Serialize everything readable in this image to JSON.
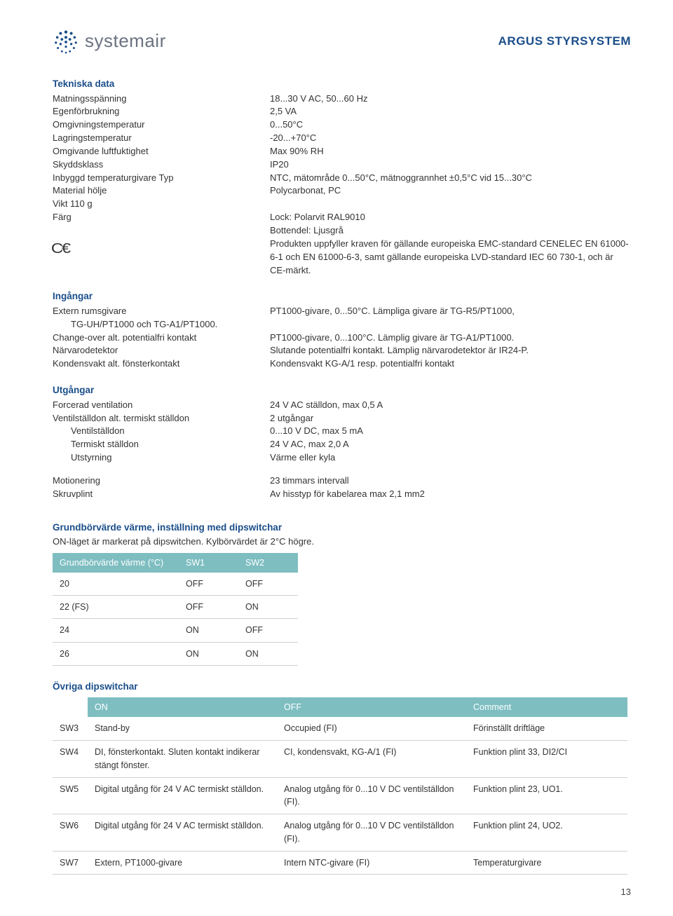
{
  "header": {
    "brand": "systemair",
    "title": "ARGUS STYRSYSTEM"
  },
  "tekniska": {
    "heading": "Tekniska data",
    "rows": [
      {
        "label": "Matningsspänning",
        "value": "18...30 V AC, 50...60 Hz"
      },
      {
        "label": "Egenförbrukning",
        "value": "2,5 VA"
      },
      {
        "label": "Omgivningstemperatur",
        "value": "0...50°C"
      },
      {
        "label": "Lagringstemperatur",
        "value": "-20...+70°C"
      },
      {
        "label": "Omgivande luftfuktighet",
        "value": "Max 90% RH"
      },
      {
        "label": "Skyddsklass",
        "value": "IP20"
      },
      {
        "label": "Inbyggd temperaturgivare Typ",
        "value": "NTC, mätområde 0...50°C, mätnoggrannhet ±0,5°C vid 15...30°C"
      },
      {
        "label": "Material hölje",
        "value": "Polycarbonat, PC"
      },
      {
        "label": "Vikt 110 g",
        "value": ""
      },
      {
        "label": "Färg",
        "value": "Lock: Polarvit RAL9010"
      }
    ],
    "farg_extra": "Bottendel: Ljusgrå",
    "ce_text": "Produkten uppfyller kraven för gällande europeiska EMC-standard CENELEC EN 61000-6-1 och EN 61000-6-3, samt gällande europeiska LVD-standard IEC 60 730-1, och är CE-märkt."
  },
  "ingangar": {
    "heading": "Ingångar",
    "rows": [
      {
        "label": "Extern rumsgivare",
        "value": "PT1000-givare, 0...50°C. Lämpliga givare är TG-R5/PT1000,"
      },
      {
        "label": "TG-UH/PT1000 och TG-A1/PT1000.",
        "value": "",
        "indent": true
      },
      {
        "label": "Change-over alt. potentialfri kontakt",
        "value": "PT1000-givare, 0...100°C. Lämplig givare är TG-A1/PT1000."
      },
      {
        "label": "Närvarodetektor",
        "value": "Slutande potentialfri kontakt. Lämplig närvarodetektor är IR24-P."
      },
      {
        "label": "Kondensvakt alt. fönsterkontakt",
        "value": "Kondensvakt KG-A/1 resp. potentialfri kontakt"
      }
    ]
  },
  "utgangar": {
    "heading": "Utgångar",
    "rows": [
      {
        "label": "Forcerad ventilation",
        "value": "24 V AC ställdon, max 0,5 A"
      },
      {
        "label": "Ventilställdon alt. termiskt ställdon",
        "value": "2 utgångar"
      },
      {
        "label": "Ventilställdon",
        "value": "0...10 V DC, max 5 mA",
        "indent": true
      },
      {
        "label": "Termiskt ställdon",
        "value": "24 V AC, max 2,0 A",
        "indent": true
      },
      {
        "label": "Utstyrning",
        "value": "Värme eller kyla",
        "indent": true
      }
    ],
    "gap_rows": [
      {
        "label": "Motionering",
        "value": "23 timmars intervall"
      },
      {
        "label": "Skruvplint",
        "value": "Av hisstyp för kabelarea max 2,1 mm2"
      }
    ]
  },
  "table1": {
    "heading": "Grundbörvärde värme, inställning med dipswitchar",
    "intro": "ON-läget är markerat på dipswitchen. Kylbörvärdet är 2°C högre.",
    "columns": [
      "Grundbörvärde värme (°C)",
      "SW1",
      "SW2"
    ],
    "rows": [
      [
        "20",
        "OFF",
        "OFF"
      ],
      [
        "22 (FS)",
        "OFF",
        "ON"
      ],
      [
        "24",
        "ON",
        "OFF"
      ],
      [
        "26",
        "ON",
        "ON"
      ]
    ]
  },
  "table2": {
    "heading": "Övriga dipswitchar",
    "columns": [
      "",
      "ON",
      "OFF",
      "Comment"
    ],
    "rows": [
      [
        "SW3",
        "Stand-by",
        "Occupied (FI)",
        "Förinställt driftläge"
      ],
      [
        "SW4",
        "DI, fönsterkontakt. Sluten kontakt indikerar stängt fönster.",
        "CI, kondensvakt, KG-A/1 (FI)",
        "Funktion plint 33, DI2/CI"
      ],
      [
        "SW5",
        "Digital utgång för 24 V AC termiskt ställdon.",
        "Analog utgång för 0...10 V DC ventilställdon (FI).",
        "Funktion plint 23, UO1."
      ],
      [
        "SW6",
        "Digital utgång för 24 V AC termiskt ställdon.",
        "Analog utgång för 0...10 V DC ventilställdon (FI).",
        "Funktion plint 24, UO2."
      ],
      [
        "SW7",
        "Extern, PT1000-givare",
        "Intern NTC-givare (FI)",
        "Temperaturgivare"
      ]
    ]
  },
  "page": "13",
  "colors": {
    "brand_blue": "#1a4e8a",
    "table_head": "#7ebec1",
    "logo_grey": "#6b7280"
  }
}
